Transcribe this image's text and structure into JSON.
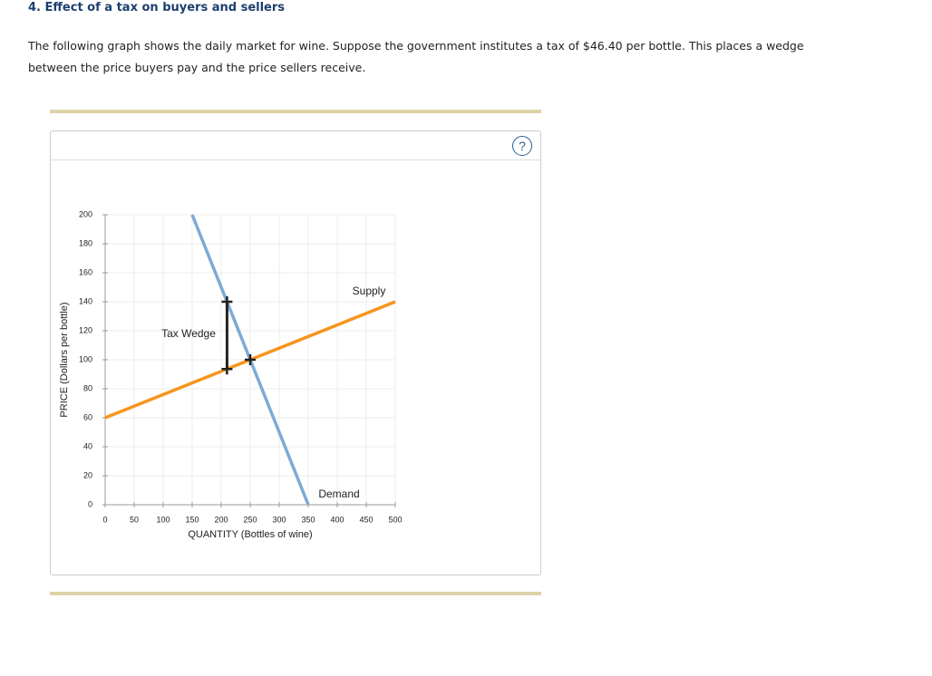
{
  "header": {
    "title": "4. Effect of a tax on buyers and sellers",
    "prompt": "The following graph shows the daily market for wine. Suppose the government institutes a tax of $46.40 per bottle. This places a wedge between the price buyers pay and the price sellers receive.",
    "help": "?"
  },
  "chart_data": {
    "type": "line",
    "xlabel": "QUANTITY (Bottles of wine)",
    "ylabel": "PRICE (Dollars per bottle)",
    "xlim": [
      0,
      500
    ],
    "ylim": [
      0,
      200
    ],
    "xticks": [
      0,
      50,
      100,
      150,
      200,
      250,
      300,
      350,
      400,
      450,
      500
    ],
    "yticks": [
      0,
      20,
      40,
      60,
      80,
      100,
      120,
      140,
      160,
      180,
      200
    ],
    "grid": true,
    "series": [
      {
        "name": "Demand",
        "color": "#7eaad4",
        "x": [
          150,
          350
        ],
        "values": [
          200,
          0
        ]
      },
      {
        "name": "Supply",
        "color": "#f7941d",
        "x": [
          0,
          500
        ],
        "values": [
          60,
          140
        ]
      }
    ],
    "tax_wedge": {
      "label": "Tax Wedge",
      "x": [
        210,
        210
      ],
      "values": [
        140,
        93.6
      ],
      "color": "#222"
    },
    "equilibrium": {
      "x": 250,
      "value": 100
    }
  }
}
